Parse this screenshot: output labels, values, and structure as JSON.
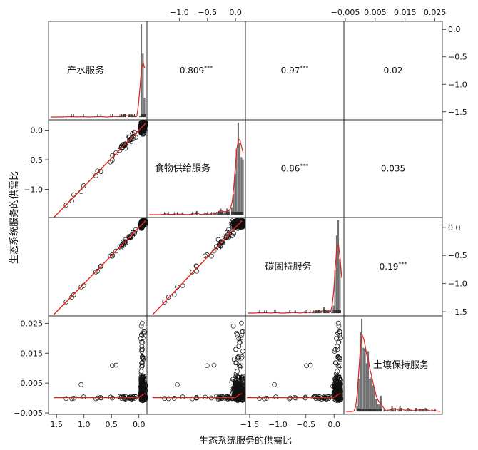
{
  "chart_data": {
    "type": "scatter",
    "xlabel": "生态系统服务的供需比",
    "ylabel": "生态系统服务的供需比",
    "variables": [
      "产水服务",
      "食物供给服务",
      "碳固持服务",
      "土壤保持服务"
    ],
    "correlations": [
      {
        "row": 0,
        "col": 1,
        "text": "0.809***"
      },
      {
        "row": 0,
        "col": 2,
        "text": "0.97***"
      },
      {
        "row": 0,
        "col": 3,
        "text": "0.02"
      },
      {
        "row": 1,
        "col": 2,
        "text": "0.86***"
      },
      {
        "row": 1,
        "col": 3,
        "text": "0.035"
      },
      {
        "row": 2,
        "col": 3,
        "text": "0.19***"
      }
    ],
    "axes": {
      "bottom_col0": {
        "reversed": true,
        "range": [
          1.62,
          -0.12
        ],
        "ticks": [
          "1.5",
          "1.0",
          "0.5",
          "0.0"
        ],
        "tick_values": [
          1.5,
          1.0,
          0.5,
          0.0
        ]
      },
      "top_col1": {
        "range": [
          -1.55,
          0.15
        ],
        "ticks": [
          "−1.0",
          "−0.5",
          "0.0"
        ],
        "tick_values": [
          -1.0,
          -0.5,
          0.0
        ]
      },
      "bottom_col2": {
        "range": [
          -1.55,
          0.15
        ],
        "ticks": [
          "−1.5",
          "−1.0",
          "−0.5",
          "0.0"
        ],
        "tick_values": [
          -1.5,
          -1.0,
          -0.5,
          0.0
        ]
      },
      "top_col3": {
        "range": [
          -0.005,
          0.027
        ],
        "ticks": [
          "−0.005",
          "0.005",
          "0.015",
          "0.025"
        ],
        "tick_values": [
          -0.005,
          0.005,
          0.015,
          0.025
        ]
      },
      "right_row0": {
        "range": [
          -1.62,
          0.12
        ],
        "ticks": [
          "0.0",
          "−0.5",
          "−1.0",
          "−1.5"
        ],
        "tick_values": [
          0.0,
          -0.5,
          -1.0,
          -1.5
        ]
      },
      "left_row1": {
        "range": [
          -1.45,
          0.15
        ],
        "ticks": [
          "0.0",
          "−0.5",
          "−1.0"
        ],
        "tick_values": [
          0.0,
          -0.5,
          -1.0
        ]
      },
      "right_row2": {
        "range": [
          -1.55,
          0.15
        ],
        "ticks": [
          "0.0",
          "−0.5",
          "−1.0",
          "−1.5"
        ],
        "tick_values": [
          0.0,
          -0.5,
          -1.0,
          -1.5
        ]
      },
      "left_row3": {
        "range": [
          -0.005,
          0.027
        ],
        "ticks": [
          "0.025",
          "0.015",
          "0.005",
          "−0.005"
        ],
        "tick_values": [
          0.025,
          0.015,
          0.005,
          -0.005
        ]
      }
    },
    "colors": {
      "points": "#111111",
      "fit": "#e0201b",
      "density": "#e0201b",
      "hist": "#7a7a7a"
    },
    "grid": false,
    "legend": "none"
  }
}
